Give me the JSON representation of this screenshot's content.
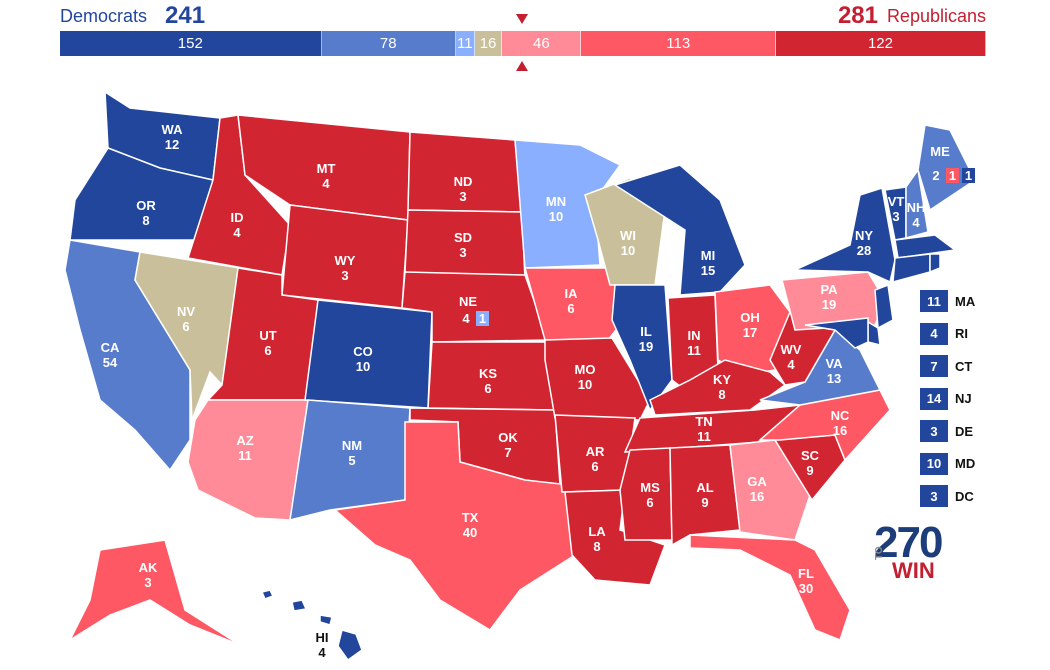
{
  "header": {
    "dem_name": "Democrats",
    "dem_total": "241",
    "rep_total": "281",
    "rep_name": "Republicans"
  },
  "bar": [
    {
      "label": "152",
      "value": 152,
      "color": "#23469d"
    },
    {
      "label": "78",
      "value": 78,
      "color": "#577ccc"
    },
    {
      "label": "11",
      "value": 11,
      "color": "#8aafff"
    },
    {
      "label": "16",
      "value": 16,
      "color": "#c9c09b"
    },
    {
      "label": "46",
      "value": 46,
      "color": "#ff8b98"
    },
    {
      "label": "113",
      "value": 113,
      "color": "#ff5865"
    },
    {
      "label": "122",
      "value": 122,
      "color": "#d22532"
    }
  ],
  "colors": {
    "safe_dem": "#23469d",
    "likely_dem": "#577ccc",
    "lean_dem": "#8aafff",
    "tossup": "#c9c09b",
    "lean_rep": "#ff8b98",
    "likely_rep": "#ff5865",
    "safe_rep": "#d22532"
  },
  "states": {
    "WA": {
      "abbr": "WA",
      "ev": "12",
      "rating": "safe_dem"
    },
    "OR": {
      "abbr": "OR",
      "ev": "8",
      "rating": "safe_dem"
    },
    "CA": {
      "abbr": "CA",
      "ev": "54",
      "rating": "likely_dem"
    },
    "NV": {
      "abbr": "NV",
      "ev": "6",
      "rating": "tossup"
    },
    "ID": {
      "abbr": "ID",
      "ev": "4",
      "rating": "safe_rep"
    },
    "MT": {
      "abbr": "MT",
      "ev": "4",
      "rating": "safe_rep"
    },
    "WY": {
      "abbr": "WY",
      "ev": "3",
      "rating": "safe_rep"
    },
    "UT": {
      "abbr": "UT",
      "ev": "6",
      "rating": "safe_rep"
    },
    "AZ": {
      "abbr": "AZ",
      "ev": "11",
      "rating": "lean_rep"
    },
    "CO": {
      "abbr": "CO",
      "ev": "10",
      "rating": "safe_dem"
    },
    "NM": {
      "abbr": "NM",
      "ev": "5",
      "rating": "likely_dem"
    },
    "ND": {
      "abbr": "ND",
      "ev": "3",
      "rating": "safe_rep"
    },
    "SD": {
      "abbr": "SD",
      "ev": "3",
      "rating": "safe_rep"
    },
    "NE": {
      "abbr": "NE",
      "ev": "4",
      "rating": "safe_rep"
    },
    "NE2": {
      "abbr": "",
      "ev": "1",
      "rating": "lean_dem"
    },
    "KS": {
      "abbr": "KS",
      "ev": "6",
      "rating": "safe_rep"
    },
    "OK": {
      "abbr": "OK",
      "ev": "7",
      "rating": "safe_rep"
    },
    "TX": {
      "abbr": "TX",
      "ev": "40",
      "rating": "likely_rep"
    },
    "MN": {
      "abbr": "MN",
      "ev": "10",
      "rating": "lean_dem"
    },
    "IA": {
      "abbr": "IA",
      "ev": "6",
      "rating": "likely_rep"
    },
    "MO": {
      "abbr": "MO",
      "ev": "10",
      "rating": "safe_rep"
    },
    "AR": {
      "abbr": "AR",
      "ev": "6",
      "rating": "safe_rep"
    },
    "LA": {
      "abbr": "LA",
      "ev": "8",
      "rating": "safe_rep"
    },
    "WI": {
      "abbr": "WI",
      "ev": "10",
      "rating": "tossup"
    },
    "IL": {
      "abbr": "IL",
      "ev": "19",
      "rating": "safe_dem"
    },
    "MI": {
      "abbr": "MI",
      "ev": "15",
      "rating": "safe_dem"
    },
    "IN": {
      "abbr": "IN",
      "ev": "11",
      "rating": "safe_rep"
    },
    "OH": {
      "abbr": "OH",
      "ev": "17",
      "rating": "likely_rep"
    },
    "KY": {
      "abbr": "KY",
      "ev": "8",
      "rating": "safe_rep"
    },
    "TN": {
      "abbr": "TN",
      "ev": "11",
      "rating": "safe_rep"
    },
    "MS": {
      "abbr": "MS",
      "ev": "6",
      "rating": "safe_rep"
    },
    "AL": {
      "abbr": "AL",
      "ev": "9",
      "rating": "safe_rep"
    },
    "GA": {
      "abbr": "GA",
      "ev": "16",
      "rating": "lean_rep"
    },
    "FL": {
      "abbr": "FL",
      "ev": "30",
      "rating": "likely_rep"
    },
    "SC": {
      "abbr": "SC",
      "ev": "9",
      "rating": "safe_rep"
    },
    "NC": {
      "abbr": "NC",
      "ev": "16",
      "rating": "likely_rep"
    },
    "VA": {
      "abbr": "VA",
      "ev": "13",
      "rating": "likely_dem"
    },
    "WV": {
      "abbr": "WV",
      "ev": "4",
      "rating": "safe_rep"
    },
    "PA": {
      "abbr": "PA",
      "ev": "19",
      "rating": "lean_rep"
    },
    "NY": {
      "abbr": "NY",
      "ev": "28",
      "rating": "safe_dem"
    },
    "VT": {
      "abbr": "VT",
      "ev": "3",
      "rating": "safe_dem"
    },
    "NH": {
      "abbr": "NH",
      "ev": "4",
      "rating": "likely_dem"
    },
    "ME": {
      "abbr": "ME",
      "ev": "2",
      "rating": "likely_dem"
    },
    "ME1": {
      "abbr": "",
      "ev": "1",
      "rating": "safe_dem"
    },
    "ME2": {
      "abbr": "",
      "ev": "1",
      "rating": "likely_rep"
    },
    "AK": {
      "abbr": "AK",
      "ev": "3",
      "rating": "likely_rep"
    },
    "HI": {
      "abbr": "HI",
      "ev": "4",
      "rating": "safe_dem"
    }
  },
  "small_states": [
    {
      "ev": "11",
      "abbr": "MA"
    },
    {
      "ev": "4",
      "abbr": "RI"
    },
    {
      "ev": "7",
      "abbr": "CT"
    },
    {
      "ev": "14",
      "abbr": "NJ"
    },
    {
      "ev": "3",
      "abbr": "DE"
    },
    {
      "ev": "10",
      "abbr": "MD"
    },
    {
      "ev": "3",
      "abbr": "DC"
    }
  ],
  "logo": {
    "number": "270",
    "to": "TO",
    "win": "WIN"
  }
}
